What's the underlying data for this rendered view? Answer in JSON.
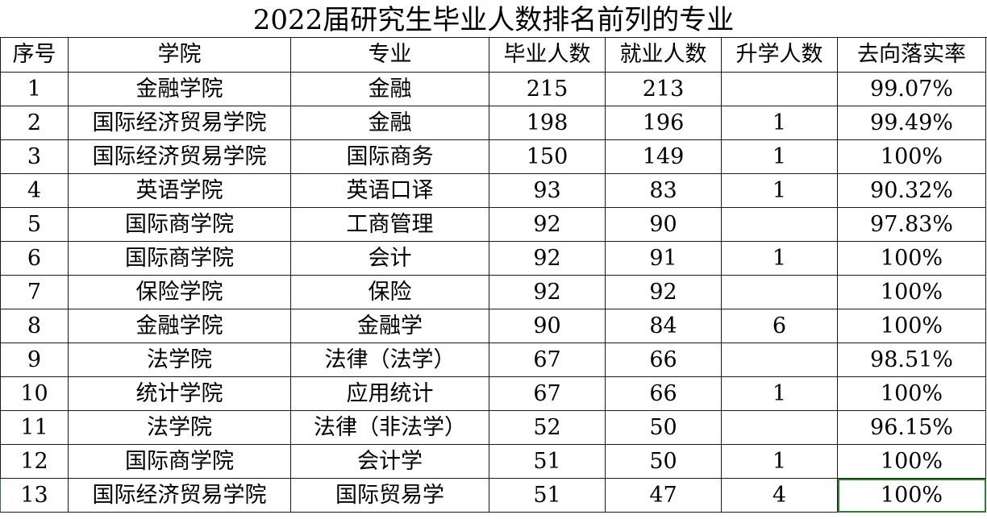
{
  "title": "2022届研究生毕业人数排名前列的专业",
  "columns": [
    "序号",
    "学院",
    "专业",
    "毕业人数",
    "就业人数",
    "升学人数",
    "去向落实率"
  ],
  "rows": [
    [
      "1",
      "金融学院",
      "金融",
      "215",
      "213",
      "",
      "99.07%"
    ],
    [
      "2",
      "国际经济贸易学院",
      "金融",
      "198",
      "196",
      "1",
      "99.49%"
    ],
    [
      "3",
      "国际经济贸易学院",
      "国际商务",
      "150",
      "149",
      "1",
      "100%"
    ],
    [
      "4",
      "英语学院",
      "英语口译",
      "93",
      "83",
      "1",
      "90.32%"
    ],
    [
      "5",
      "国际商学院",
      "工商管理",
      "92",
      "90",
      "",
      "97.83%"
    ],
    [
      "6",
      "国际商学院",
      "会计",
      "92",
      "91",
      "1",
      "100%"
    ],
    [
      "7",
      "保险学院",
      "保险",
      "92",
      "92",
      "",
      "100%"
    ],
    [
      "8",
      "金融学院",
      "金融学",
      "90",
      "84",
      "6",
      "100%"
    ],
    [
      "9",
      "法学院",
      "法律（法学）",
      "67",
      "66",
      "",
      "98.51%"
    ],
    [
      "10",
      "统计学院",
      "应用统计",
      "67",
      "66",
      "1",
      "100%"
    ],
    [
      "11",
      "法学院",
      "法律（非法学）",
      "52",
      "50",
      "",
      "96.15%"
    ],
    [
      "12",
      "国际商学院",
      "会计学",
      "51",
      "50",
      "1",
      "100%"
    ],
    [
      "13",
      "国际经济贸易学院",
      "国际贸易学",
      "51",
      "47",
      "4",
      "100%"
    ]
  ],
  "colors": {
    "border": "#1a1a1a",
    "selection": "#2e7d32"
  }
}
